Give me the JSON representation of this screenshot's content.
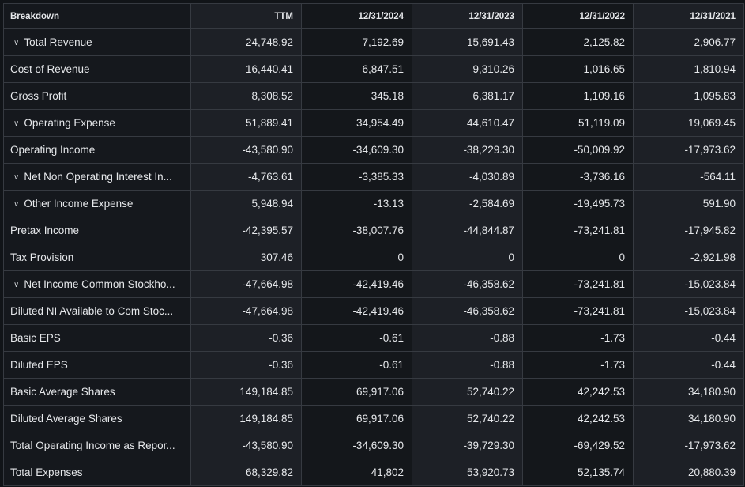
{
  "header": [
    "Breakdown",
    "TTM",
    "12/31/2024",
    "12/31/2023",
    "12/31/2022",
    "12/31/2021"
  ],
  "rows": [
    {
      "label": "Total Revenue",
      "expandable": true,
      "values": [
        "24,748.92",
        "7,192.69",
        "15,691.43",
        "2,125.82",
        "2,906.77"
      ]
    },
    {
      "label": "Cost of Revenue",
      "expandable": false,
      "values": [
        "16,440.41",
        "6,847.51",
        "9,310.26",
        "1,016.65",
        "1,810.94"
      ]
    },
    {
      "label": "Gross Profit",
      "expandable": false,
      "values": [
        "8,308.52",
        "345.18",
        "6,381.17",
        "1,109.16",
        "1,095.83"
      ]
    },
    {
      "label": "Operating Expense",
      "expandable": true,
      "values": [
        "51,889.41",
        "34,954.49",
        "44,610.47",
        "51,119.09",
        "19,069.45"
      ]
    },
    {
      "label": "Operating Income",
      "expandable": false,
      "values": [
        "-43,580.90",
        "-34,609.30",
        "-38,229.30",
        "-50,009.92",
        "-17,973.62"
      ]
    },
    {
      "label": "Net Non Operating Interest In...",
      "expandable": true,
      "values": [
        "-4,763.61",
        "-3,385.33",
        "-4,030.89",
        "-3,736.16",
        "-564.11"
      ]
    },
    {
      "label": "Other Income Expense",
      "expandable": true,
      "values": [
        "5,948.94",
        "-13.13",
        "-2,584.69",
        "-19,495.73",
        "591.90"
      ]
    },
    {
      "label": "Pretax Income",
      "expandable": false,
      "values": [
        "-42,395.57",
        "-38,007.76",
        "-44,844.87",
        "-73,241.81",
        "-17,945.82"
      ]
    },
    {
      "label": "Tax Provision",
      "expandable": false,
      "values": [
        "307.46",
        "0",
        "0",
        "0",
        "-2,921.98"
      ]
    },
    {
      "label": "Net Income Common Stockho...",
      "expandable": true,
      "values": [
        "-47,664.98",
        "-42,419.46",
        "-46,358.62",
        "-73,241.81",
        "-15,023.84"
      ]
    },
    {
      "label": "Diluted NI Available to Com Stoc...",
      "expandable": false,
      "values": [
        "-47,664.98",
        "-42,419.46",
        "-46,358.62",
        "-73,241.81",
        "-15,023.84"
      ]
    },
    {
      "label": "Basic EPS",
      "expandable": false,
      "values": [
        "-0.36",
        "-0.61",
        "-0.88",
        "-1.73",
        "-0.44"
      ]
    },
    {
      "label": "Diluted EPS",
      "expandable": false,
      "values": [
        "-0.36",
        "-0.61",
        "-0.88",
        "-1.73",
        "-0.44"
      ]
    },
    {
      "label": "Basic Average Shares",
      "expandable": false,
      "values": [
        "149,184.85",
        "69,917.06",
        "52,740.22",
        "42,242.53",
        "34,180.90"
      ]
    },
    {
      "label": "Diluted Average Shares",
      "expandable": false,
      "values": [
        "149,184.85",
        "69,917.06",
        "52,740.22",
        "42,242.53",
        "34,180.90"
      ]
    },
    {
      "label": "Total Operating Income as Repor...",
      "expandable": false,
      "values": [
        "-43,580.90",
        "-34,609.30",
        "-39,729.30",
        "-69,429.52",
        "-17,973.62"
      ]
    },
    {
      "label": "Total Expenses",
      "expandable": false,
      "values": [
        "68,329.82",
        "41,802",
        "53,920.73",
        "52,135.74",
        "20,880.39"
      ]
    }
  ],
  "icons": {
    "expand": "chevron-down-icon"
  }
}
